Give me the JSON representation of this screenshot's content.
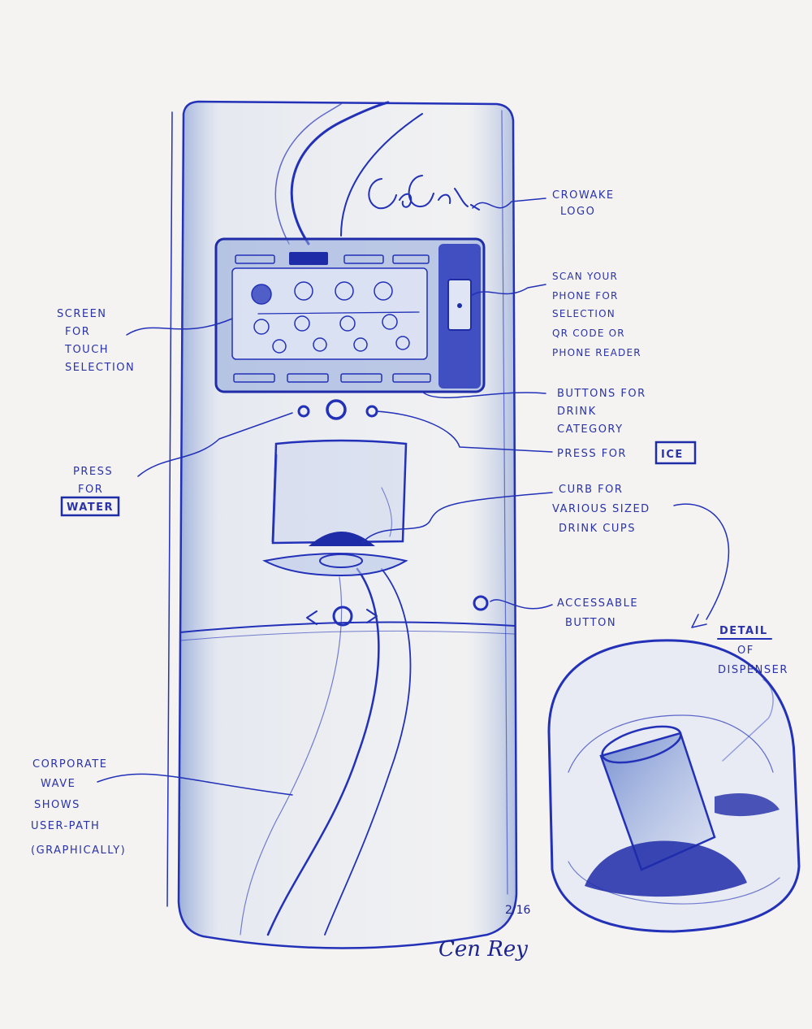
{
  "annotations": {
    "logo": [
      "CROWAKE",
      "LOGO"
    ],
    "scan": [
      "SCAN YOUR",
      "PHONE FOR",
      "SELECTION",
      "QR CODE OR",
      "PHONE READER"
    ],
    "screen": [
      "SCREEN",
      "FOR",
      "TOUCH",
      "SELECTION"
    ],
    "buttons": [
      "BUTTONS FOR",
      "DRINK",
      "CATEGORY"
    ],
    "ice": [
      "PRESS FOR",
      "ICE"
    ],
    "water": [
      "PRESS",
      "FOR",
      "WATER"
    ],
    "curb": [
      "CURB FOR",
      "VARIOUS SIZED",
      "DRINK CUPS"
    ],
    "accessible": [
      "ACCESSABLE",
      "BUTTON"
    ],
    "detail": [
      "DETAIL",
      "OF",
      "DISPENSER"
    ],
    "wave": [
      "CORPORATE",
      "WAVE",
      "SHOWS",
      "USER-PATH",
      "(GRAPHICALLY)"
    ]
  },
  "signature": {
    "date": "2/16",
    "name": "Cen Rey"
  },
  "colors": {
    "ink": "#2231b8",
    "wash": "#8aa2d8",
    "paper": "#f4f3f1"
  }
}
